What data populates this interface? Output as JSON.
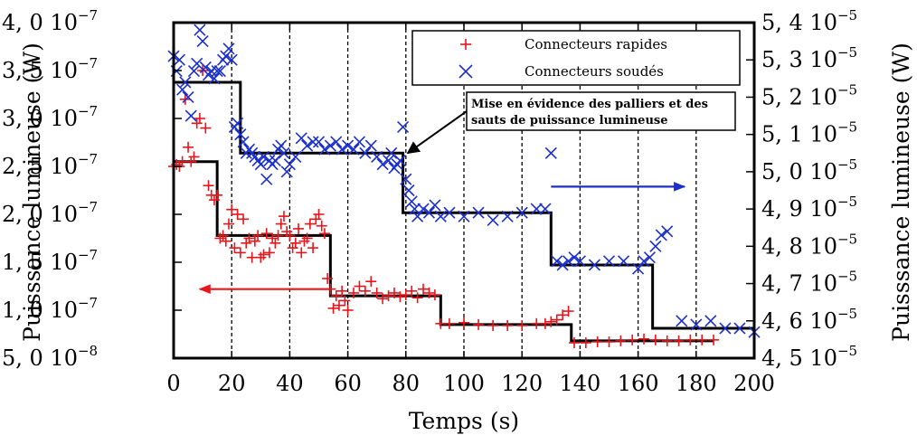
{
  "chart_data": {
    "type": "scatter",
    "xlabel": "Temps (s)",
    "ylabel_left": "Puisssance lumineuse (W)",
    "ylabel_right": "Puisssance lumineuse (W)",
    "xlim": [
      0,
      200
    ],
    "ylim_left": [
      5e-08,
      4e-07
    ],
    "ylim_right": [
      4.5e-05,
      5.4e-05
    ],
    "x_ticks": [
      "0",
      "20",
      "40",
      "60",
      "80",
      "100",
      "120",
      "140",
      "160",
      "180",
      "200"
    ],
    "y_left_ticks": [
      {
        "mantissa": "5, 0",
        "base": "10",
        "exp": "−8"
      },
      {
        "mantissa": "1, 0",
        "base": "10",
        "exp": "−7"
      },
      {
        "mantissa": "1, 5",
        "base": "10",
        "exp": "−7"
      },
      {
        "mantissa": "2, 0",
        "base": "10",
        "exp": "−7"
      },
      {
        "mantissa": "2, 5",
        "base": "10",
        "exp": "−7"
      },
      {
        "mantissa": "3, 0",
        "base": "10",
        "exp": "−7"
      },
      {
        "mantissa": "3, 5",
        "base": "10",
        "exp": "−7"
      },
      {
        "mantissa": "4, 0",
        "base": "10",
        "exp": "−7"
      }
    ],
    "y_right_ticks": [
      {
        "mantissa": "4, 5",
        "base": "10",
        "exp": "−5"
      },
      {
        "mantissa": "4, 6",
        "base": "10",
        "exp": "−5"
      },
      {
        "mantissa": "4, 7",
        "base": "10",
        "exp": "−5"
      },
      {
        "mantissa": "4, 8",
        "base": "10",
        "exp": "−5"
      },
      {
        "mantissa": "4, 9",
        "base": "10",
        "exp": "−5"
      },
      {
        "mantissa": "5, 0",
        "base": "10",
        "exp": "−5"
      },
      {
        "mantissa": "5, 1",
        "base": "10",
        "exp": "−5"
      },
      {
        "mantissa": "5, 2",
        "base": "10",
        "exp": "−5"
      },
      {
        "mantissa": "5, 3",
        "base": "10",
        "exp": "−5"
      },
      {
        "mantissa": "5, 4",
        "base": "10",
        "exp": "−5"
      }
    ],
    "grid": "vertical dashed lines at x = 20, 40, ..., 180",
    "legend_position": "top-right",
    "series": [
      {
        "name": "Connecteurs rapides",
        "marker": "+",
        "color": "#e8151b",
        "axis": "left",
        "x": [
          0,
          1,
          2,
          3,
          4,
          5,
          6,
          7,
          8,
          9,
          10,
          11,
          12,
          13,
          14,
          15,
          16,
          17,
          18,
          19,
          20,
          21,
          22,
          23,
          24,
          25,
          26,
          27,
          28,
          29,
          30,
          31,
          32,
          33,
          34,
          35,
          36,
          37,
          38,
          39,
          40,
          41,
          42,
          43,
          44,
          45,
          46,
          47,
          48,
          49,
          50,
          51,
          52,
          53,
          54,
          55,
          56,
          57,
          58,
          59,
          60,
          62,
          64,
          66,
          68,
          70,
          72,
          74,
          76,
          78,
          80,
          82,
          84,
          86,
          88,
          90,
          92,
          95,
          100,
          105,
          110,
          115,
          120,
          125,
          128,
          130,
          132,
          134,
          136,
          138,
          142,
          146,
          150,
          154,
          158,
          162,
          166,
          170,
          174,
          178,
          182,
          186
        ],
        "y": [
          2.5e-07,
          2.52e-07,
          2.5e-07,
          2.55e-07,
          3.2e-07,
          2.7e-07,
          2.55e-07,
          2.6e-07,
          2.95e-07,
          3e-07,
          3.5e-07,
          2.9e-07,
          2.3e-07,
          2.2e-07,
          2.15e-07,
          2.2e-07,
          1.75e-07,
          1.78e-07,
          1.72e-07,
          1.9e-07,
          2.05e-07,
          1.65e-07,
          2e-07,
          1.6e-07,
          1.95e-07,
          1.7e-07,
          1.75e-07,
          1.55e-07,
          1.72e-07,
          1.78e-07,
          1.55e-07,
          1.58e-07,
          1.8e-07,
          1.6e-07,
          1.75e-07,
          1.7e-07,
          1.78e-07,
          1.9e-07,
          1.98e-07,
          1.82e-07,
          1.78e-07,
          1.65e-07,
          1.7e-07,
          1.85e-07,
          1.6e-07,
          1.72e-07,
          1.75e-07,
          1.9e-07,
          1.65e-07,
          1.95e-07,
          2e-07,
          1.88e-07,
          1.8e-07,
          1.33e-07,
          1.22e-07,
          1.02e-07,
          1.15e-07,
          1.05e-07,
          1.2e-07,
          1.1e-07,
          1e-07,
          1.18e-07,
          1.25e-07,
          1.2e-07,
          1.3e-07,
          1.18e-07,
          1.12e-07,
          1.15e-07,
          1.18e-07,
          1.14e-07,
          1.16e-07,
          1.2e-07,
          1.13e-07,
          1.22e-07,
          1.18e-07,
          1.16e-07,
          8.6e-08,
          8.6e-08,
          8.7e-08,
          8.5e-08,
          8.4e-08,
          8.4e-08,
          8.4e-08,
          8.6e-08,
          8.6e-08,
          8.8e-08,
          9e-08,
          9.5e-08,
          9.9e-08,
          6.6e-08,
          6.6e-08,
          6.7e-08,
          6.7e-08,
          6.8e-08,
          6.9e-08,
          7e-08,
          6.9e-08,
          6.8e-08,
          6.8e-08,
          6.9e-08,
          6.9e-08,
          6.9e-08
        ]
      },
      {
        "name": "Connecteurs soudés",
        "marker": "x",
        "color": "#1b2fcc",
        "axis": "right",
        "x": [
          0,
          1,
          2,
          3,
          4,
          5,
          6,
          7,
          8,
          9,
          10,
          11,
          12,
          13,
          14,
          15,
          16,
          17,
          18,
          19,
          20,
          21,
          22,
          23,
          24,
          25,
          26,
          27,
          28,
          29,
          30,
          31,
          32,
          33,
          34,
          35,
          36,
          37,
          38,
          39,
          40,
          42,
          44,
          46,
          48,
          50,
          52,
          54,
          56,
          58,
          60,
          62,
          64,
          66,
          68,
          70,
          72,
          74,
          75,
          76,
          77,
          78,
          79,
          80,
          81,
          82,
          83,
          84,
          86,
          88,
          90,
          92,
          95,
          100,
          105,
          110,
          115,
          120,
          125,
          128,
          130,
          132,
          134,
          136,
          138,
          140,
          145,
          150,
          155,
          160,
          162,
          164,
          166,
          168,
          170,
          175,
          180,
          185,
          190,
          195,
          200
        ],
        "y": [
          5.31e-05,
          5.27e-05,
          5.3e-05,
          5.22e-05,
          5.24e-05,
          5.2e-05,
          5.15e-05,
          5.27e-05,
          5.29e-05,
          5.38e-05,
          5.35e-05,
          5.28e-05,
          5.26e-05,
          5.27e-05,
          5.25e-05,
          5.27e-05,
          5.27e-05,
          5.3e-05,
          5.31e-05,
          5.33e-05,
          5.3e-05,
          5.12e-05,
          5.13e-05,
          5.1e-05,
          5.08e-05,
          5.05e-05,
          5.06e-05,
          5.05e-05,
          5.04e-05,
          5.03e-05,
          5.02e-05,
          5.04e-05,
          4.98e-05,
          5.03e-05,
          5.02e-05,
          5.03e-05,
          5.06e-05,
          5.07e-05,
          5.05e-05,
          5e-05,
          5.02e-05,
          5.04e-05,
          5.09e-05,
          5.07e-05,
          5.08e-05,
          5.08e-05,
          5.06e-05,
          5.07e-05,
          5.08e-05,
          5.06e-05,
          5.07e-05,
          5.06e-05,
          5.08e-05,
          5.05e-05,
          5.07e-05,
          5.04e-05,
          5.02e-05,
          5.03e-05,
          5.05e-05,
          5.01e-05,
          5.02e-05,
          5.03e-05,
          5.12e-05,
          4.98e-05,
          4.95e-05,
          4.92e-05,
          4.9e-05,
          4.88e-05,
          4.9e-05,
          4.89e-05,
          4.91e-05,
          4.88e-05,
          4.89e-05,
          4.88e-05,
          4.89e-05,
          4.87e-05,
          4.88e-05,
          4.89e-05,
          4.9e-05,
          4.9e-05,
          5.05e-05,
          4.76e-05,
          4.75e-05,
          4.76e-05,
          4.77e-05,
          4.76e-05,
          4.75e-05,
          4.76e-05,
          4.76e-05,
          4.74e-05,
          4.76e-05,
          4.77e-05,
          4.8e-05,
          4.83e-05,
          4.84e-05,
          4.6e-05,
          4.59e-05,
          4.6e-05,
          4.58e-05,
          4.58e-05,
          4.57e-05
        ]
      }
    ],
    "step_left": {
      "x": [
        0,
        15,
        15,
        54,
        54,
        92,
        92,
        137,
        137,
        186
      ],
      "y": [
        2.55e-07,
        2.55e-07,
        1.78e-07,
        1.78e-07,
        1.15e-07,
        1.15e-07,
        8.5e-08,
        8.5e-08,
        6.8e-08,
        6.8e-08
      ]
    },
    "step_right": {
      "x": [
        0,
        23,
        23,
        79,
        79,
        130,
        130,
        165,
        165,
        200
      ],
      "y": [
        5.24e-05,
        5.24e-05,
        5.05e-05,
        5.05e-05,
        4.89e-05,
        4.89e-05,
        4.75e-05,
        4.75e-05,
        4.58e-05,
        4.58e-05
      ]
    },
    "arrows": [
      {
        "name": "arrow-left-axis",
        "color": "#e8151b",
        "from": [
          54,
          1.22e-07
        ],
        "to": [
          9,
          1.22e-07
        ],
        "axis": "left"
      },
      {
        "name": "arrow-right-axis",
        "color": "#1b2fcc",
        "from": [
          130,
          4.96e-05
        ],
        "to": [
          176,
          4.96e-05
        ],
        "axis": "right"
      }
    ],
    "annotation": {
      "line1": "Mise en évidence des palliers et des",
      "line2": "sauts de puissance lumineuse"
    }
  }
}
